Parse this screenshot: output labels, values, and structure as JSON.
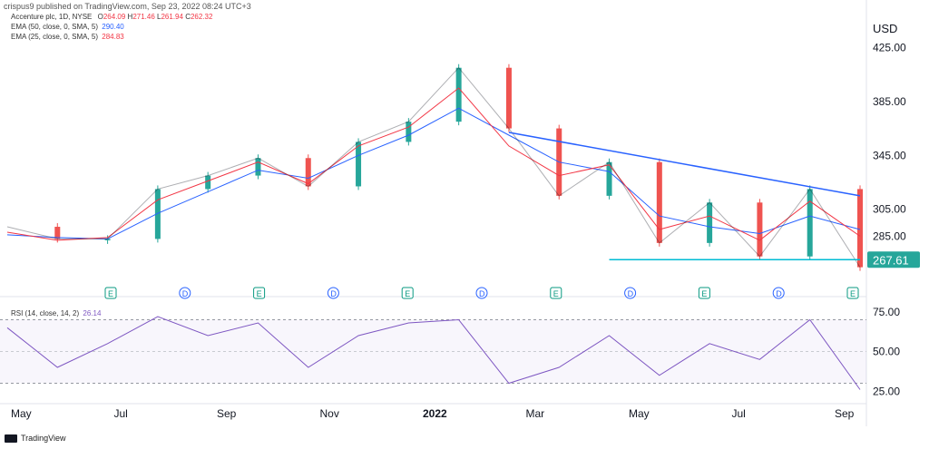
{
  "header": {
    "text": "crispus9 published on TradingView.com, Sep 23, 2022 08:24 UTC+3"
  },
  "legend": {
    "symbol": "Accenture plc, 1D, NYSE",
    "ohlc": {
      "o_label": "O",
      "o": "264.09",
      "h_label": "H",
      "h": "271.46",
      "l_label": "L",
      "l": "261.94",
      "c_label": "C",
      "c": "262.32"
    },
    "ema50": {
      "label": "EMA (50, close, 0, SMA, 5)",
      "value": "290.40",
      "color": "#2962ff"
    },
    "ema25": {
      "label": "EMA (25, close, 0, SMA, 5)",
      "value": "284.83",
      "color": "#f23645"
    }
  },
  "currency": "USD",
  "price_axis": {
    "ticks": [
      "425.00",
      "385.00",
      "345.00",
      "305.00",
      "285.00"
    ],
    "last_price": "267.61",
    "last_price_color": "#26a69a"
  },
  "rsi": {
    "label": "RSI (14, close, 14, 2)",
    "value": "26.14",
    "ticks": [
      "75.00",
      "50.00",
      "25.00"
    ],
    "color": "#7e57c2"
  },
  "x_axis": {
    "labels": [
      "May",
      "Jul",
      "Sep",
      "Nov",
      "2022",
      "Mar",
      "May",
      "Jul",
      "Sep"
    ]
  },
  "events": [
    "E",
    "D",
    "E",
    "D",
    "E",
    "D",
    "E",
    "D",
    "E",
    "D",
    "E"
  ],
  "footer": {
    "brand": "TradingView"
  },
  "chart_data": {
    "type": "line",
    "title": "Accenture plc, 1D, NYSE",
    "xlabel": "",
    "ylabel": "USD",
    "x": [
      "Apr 2021",
      "May 2021",
      "Jun 2021",
      "Jul 2021",
      "Aug 2021",
      "Sep 2021",
      "Oct 2021",
      "Nov 2021",
      "Dec 2021",
      "Jan 2022",
      "Feb 2022",
      "Mar 2022",
      "Apr 2022",
      "May 2022",
      "Jun 2022",
      "Jul 2022",
      "Aug 2022",
      "Sep 2022"
    ],
    "series": [
      {
        "name": "Accenture plc",
        "values": [
          292,
          283,
          283,
          320,
          330,
          343,
          322,
          355,
          370,
          410,
          365,
          315,
          340,
          280,
          310,
          270,
          320,
          262
        ]
      },
      {
        "name": "EMA (50, close, 0, SMA, 5)",
        "values": [
          286,
          284,
          283,
          302,
          318,
          334,
          328,
          345,
          360,
          380,
          360,
          340,
          333,
          300,
          292,
          287,
          300,
          290
        ]
      },
      {
        "name": "EMA (25, close, 0, SMA, 5)",
        "values": [
          288,
          282,
          284,
          312,
          326,
          340,
          324,
          352,
          366,
          395,
          352,
          330,
          338,
          290,
          300,
          282,
          311,
          285
        ]
      }
    ],
    "ylim": [
      255,
      430
    ],
    "trendline_start": 362,
    "trendline_end": 315,
    "support_level": 267.61,
    "rsi": {
      "values": [
        65,
        40,
        55,
        72,
        60,
        68,
        40,
        60,
        68,
        70,
        30,
        40,
        60,
        35,
        55,
        45,
        70,
        26
      ],
      "ylim": [
        20,
        80
      ],
      "levels": [
        70,
        30
      ]
    },
    "grid": true
  }
}
